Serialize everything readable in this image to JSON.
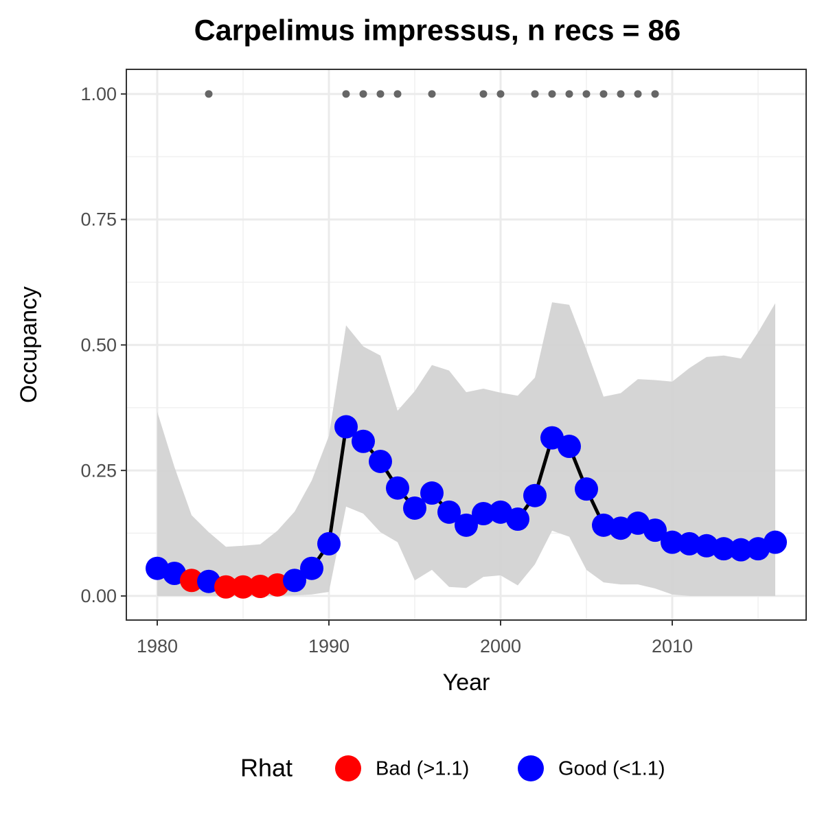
{
  "chart_data": {
    "type": "line",
    "title": "Carpelimus impressus, n recs = 86",
    "x_label": "Year",
    "y_label": "Occupancy",
    "x": [
      1980,
      1981,
      1982,
      1983,
      1984,
      1985,
      1986,
      1987,
      1988,
      1989,
      1990,
      1991,
      1992,
      1993,
      1994,
      1995,
      1996,
      1997,
      1998,
      1999,
      2000,
      2001,
      2002,
      2003,
      2004,
      2005,
      2006,
      2007,
      2008,
      2009,
      2010,
      2011,
      2012,
      2013,
      2014,
      2015,
      2016
    ],
    "values": [
      0.055,
      0.045,
      0.031,
      0.029,
      0.018,
      0.018,
      0.019,
      0.022,
      0.031,
      0.055,
      0.104,
      0.337,
      0.308,
      0.268,
      0.215,
      0.175,
      0.205,
      0.167,
      0.141,
      0.164,
      0.167,
      0.153,
      0.2,
      0.315,
      0.298,
      0.213,
      0.141,
      0.135,
      0.145,
      0.131,
      0.107,
      0.104,
      0.1,
      0.094,
      0.092,
      0.094,
      0.107
    ],
    "ci_upper": [
      0.367,
      0.257,
      0.161,
      0.127,
      0.098,
      0.1,
      0.103,
      0.13,
      0.168,
      0.23,
      0.319,
      0.539,
      0.497,
      0.479,
      0.369,
      0.408,
      0.46,
      0.449,
      0.406,
      0.413,
      0.405,
      0.399,
      0.435,
      0.585,
      0.58,
      0.491,
      0.397,
      0.404,
      0.432,
      0.43,
      0.427,
      0.454,
      0.476,
      0.479,
      0.473,
      0.525,
      0.583
    ],
    "ci_lower": [
      0,
      0,
      0,
      0,
      0,
      0,
      0,
      0,
      0.001,
      0.003,
      0.008,
      0.178,
      0.164,
      0.127,
      0.107,
      0.031,
      0.052,
      0.018,
      0.016,
      0.038,
      0.041,
      0.021,
      0.063,
      0.13,
      0.118,
      0.052,
      0.027,
      0.023,
      0.023,
      0.015,
      0.003,
      0,
      0,
      0,
      0,
      0,
      0
    ],
    "rhat_class": [
      1,
      1,
      0,
      1,
      0,
      0,
      0,
      0,
      1,
      1,
      1,
      1,
      1,
      1,
      1,
      1,
      1,
      1,
      1,
      1,
      1,
      1,
      1,
      1,
      1,
      1,
      1,
      1,
      1,
      1,
      1,
      1,
      1,
      1,
      1,
      1,
      1
    ],
    "legend": {
      "title": "Rhat",
      "position": "bottom",
      "entries": [
        {
          "name": "Bad (>1.1)",
          "color": "#ff0000"
        },
        {
          "name": "Good (<1.1)",
          "color": "#0000ff"
        }
      ]
    },
    "records": {
      "x": [
        1983,
        1991,
        1992,
        1993,
        1994,
        1996,
        1999,
        2000,
        2002,
        2003,
        2004,
        2005,
        2006,
        2007,
        2008,
        2009
      ],
      "values": [
        1,
        1,
        1,
        1,
        1,
        1,
        1,
        1,
        1,
        1,
        1,
        1,
        1,
        1,
        1,
        1
      ],
      "color": "#666666"
    },
    "line_color": "#000000",
    "ribbon_color": "#d3d3d3",
    "xlim": [
      1978.2,
      2017.8
    ],
    "ylim": [
      -0.048,
      1.049
    ],
    "xticks": [
      1980,
      1990,
      2000,
      2010
    ],
    "yticks": [
      {
        "value": 0,
        "label": "0.00"
      },
      {
        "value": 0.25,
        "label": "0.25"
      },
      {
        "value": 0.5,
        "label": "0.50"
      },
      {
        "value": 0.75,
        "label": "0.75"
      },
      {
        "value": 1,
        "label": "1.00"
      }
    ],
    "grid": true
  }
}
